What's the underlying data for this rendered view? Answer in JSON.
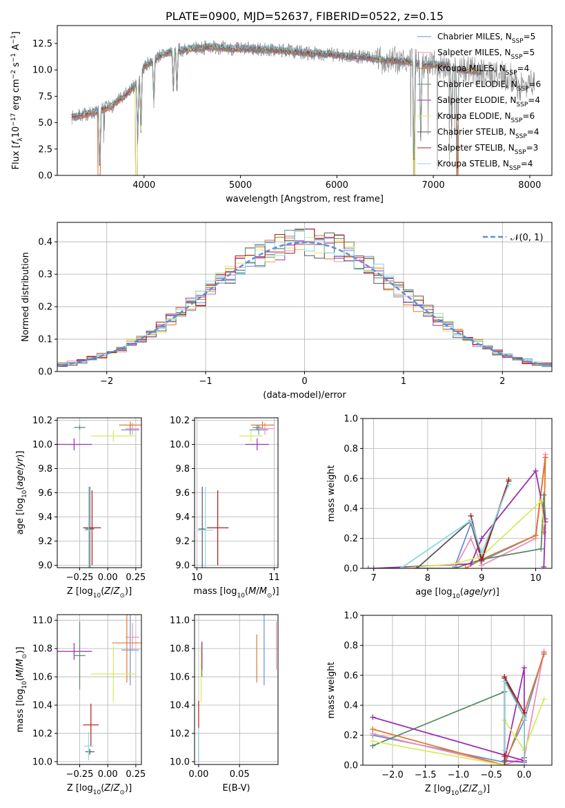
{
  "colors": {
    "chabrier_miles": "#6a8ed0",
    "salpeter_miles": "#f08fb8",
    "kroupa_miles": "#e0772a",
    "chabrier_elodie": "#5a8a66",
    "salpeter_elodie": "#9a2fb0",
    "kroupa_elodie": "#d8ea5e",
    "chabrier_stelib": "#555555",
    "salpeter_stelib": "#b01818",
    "kroupa_stelib": "#8ad8e0",
    "observed": "#808080",
    "normal_curve": "#5b8fd8"
  },
  "chart_data": [
    {
      "id": "spectrum",
      "type": "line",
      "title": "PLATE=0900, MJD=52637, FIBERID=0522, z=0.15",
      "xlabel": "wavelength [Angstrom, rest frame]",
      "ylabel": "Flux [f_λ 10^{-17} erg cm^{-2} s^{-1} A^{-1}]",
      "xlim": [
        3100,
        8230
      ],
      "ylim": [
        0,
        14.2
      ],
      "xticks": [
        4000,
        5000,
        6000,
        7000,
        8000
      ],
      "yticks": [
        0.0,
        2.5,
        5.0,
        7.5,
        10.0,
        12.5
      ],
      "ytick_labels": [
        "0.0",
        "2.5",
        "5.0",
        "7.5",
        "10.0",
        "12.5"
      ],
      "grid": false,
      "legend_placement": "right",
      "legend": [
        {
          "pre": "Chabrier MILES, N",
          "sub": "SSP",
          "post": "=5",
          "color_key": "chabrier_miles"
        },
        {
          "pre": "Salpeter MILES, N",
          "sub": "SSP",
          "post": "=5",
          "color_key": "salpeter_miles"
        },
        {
          "pre": "Kroupa MILES, N",
          "sub": "SSP",
          "post": "=4",
          "color_key": "kroupa_miles"
        },
        {
          "pre": "Chabrier ELODIE, N",
          "sub": "SSP",
          "post": "=6",
          "color_key": "chabrier_elodie"
        },
        {
          "pre": "Salpeter ELODIE, N",
          "sub": "SSP",
          "post": "=4",
          "color_key": "salpeter_elodie"
        },
        {
          "pre": "Kroupa ELODIE, N",
          "sub": "SSP",
          "post": "=6",
          "color_key": "kroupa_elodie"
        },
        {
          "pre": "Chabrier STELIB, N",
          "sub": "SSP",
          "post": "=4",
          "color_key": "chabrier_stelib"
        },
        {
          "pre": "Salpeter STELIB, N",
          "sub": "SSP",
          "post": "=3",
          "color_key": "salpeter_stelib"
        },
        {
          "pre": "Kroupa STELIB, N",
          "sub": "SSP",
          "post": "=4",
          "color_key": "kroupa_stelib"
        }
      ],
      "continuum": {
        "x": [
          3250,
          3400,
          3500,
          3650,
          3800,
          3950,
          4000,
          4150,
          4300,
          4500,
          4700,
          4900,
          5100,
          5300,
          5500,
          5700,
          5900,
          6100,
          6300,
          6500,
          6700,
          6900,
          7100,
          7300,
          7500,
          7700,
          7800,
          7900,
          8000,
          8050
        ],
        "y": [
          5.5,
          5.8,
          6.0,
          6.5,
          7.5,
          9.0,
          10.3,
          11.3,
          11.8,
          12.0,
          12.2,
          12.0,
          12.0,
          11.9,
          11.8,
          11.6,
          11.5,
          11.3,
          11.2,
          10.9,
          10.8,
          10.5,
          10.5,
          10.0,
          9.8,
          9.5,
          9.3,
          8.3,
          9.0,
          8.8
        ]
      },
      "absorption_features": [
        {
          "x": 3540,
          "y": 0.0,
          "models_only": true
        },
        {
          "x": 3934,
          "y": 3.5
        },
        {
          "x": 3968,
          "y": 4.0
        },
        {
          "x": 4102,
          "y": 6.8
        },
        {
          "x": 4304,
          "y": 8.0
        },
        {
          "x": 4341,
          "y": 7.8
        },
        {
          "x": 6800,
          "y": 0.0,
          "models_only": true
        },
        {
          "x": 6870,
          "y": 3.5
        },
        {
          "x": 7190,
          "y": 4.5
        },
        {
          "x": 7250,
          "y": 0.0,
          "models_only": true
        }
      ]
    },
    {
      "id": "residual_histogram",
      "type": "line",
      "xlabel": "(data-model)/error",
      "ylabel": "Normed distribution",
      "xlim": [
        -2.5,
        2.5
      ],
      "ylim": [
        0,
        0.46
      ],
      "xticks": [
        -2,
        -1,
        0,
        1,
        2
      ],
      "xtick_labels": [
        "−2",
        "−1",
        "0",
        "1",
        "2"
      ],
      "yticks": [
        0.0,
        0.1,
        0.2,
        0.3,
        0.4
      ],
      "ytick_labels": [
        "0.0",
        "0.1",
        "0.2",
        "0.3",
        "0.4"
      ],
      "grid": true,
      "legend_placement": "top-right",
      "legend_label": "𝒩(0, 1)",
      "bin_edges_start": -2.5,
      "bin_width": 0.1
    },
    {
      "id": "age_vs_Z",
      "type": "scatter",
      "xlabel": "Z [log10(Z/Z⊙)]",
      "ylabel": "age  [log10(age/yr)]",
      "xlim": [
        -0.45,
        0.3
      ],
      "ylim": [
        8.98,
        10.22
      ],
      "xticks": [
        -0.25,
        0.0,
        0.25
      ],
      "xtick_labels": [
        "−0.25",
        "0.00",
        "0.25"
      ],
      "yticks": [
        9.0,
        9.2,
        9.4,
        9.6,
        9.8,
        10.0,
        10.2
      ],
      "ytick_labels": [
        "9.0",
        "9.2",
        "9.4",
        "9.6",
        "9.8",
        "10.0",
        "10.2"
      ],
      "grid": true,
      "points": [
        {
          "model": "chabrier_miles",
          "x": 0.2,
          "xerr": 0.08,
          "y": 10.12,
          "yerr": 0.04
        },
        {
          "model": "salpeter_miles",
          "x": 0.22,
          "xerr": 0.06,
          "y": 10.13,
          "yerr": 0.05
        },
        {
          "model": "kroupa_miles",
          "x": 0.2,
          "xerr": 0.1,
          "y": 10.16,
          "yerr": 0.03
        },
        {
          "model": "chabrier_elodie",
          "x": -0.25,
          "xerr": 0.05,
          "y": 10.14,
          "yerr": 0.02
        },
        {
          "model": "salpeter_elodie",
          "x": -0.3,
          "xerr": 0.16,
          "y": 10.0,
          "yerr": 0.05
        },
        {
          "model": "kroupa_elodie",
          "x": 0.05,
          "xerr": 0.2,
          "y": 10.07,
          "yerr": 0.05
        },
        {
          "model": "chabrier_stelib",
          "x": -0.16,
          "xerr": 0.04,
          "y": 9.3,
          "yerr": 0.35
        },
        {
          "model": "salpeter_stelib",
          "x": -0.14,
          "xerr": 0.08,
          "y": 9.31,
          "yerr": 0.31
        },
        {
          "model": "kroupa_stelib",
          "x": -0.17,
          "xerr": 0.04,
          "y": 9.29,
          "yerr": 0.36
        }
      ]
    },
    {
      "id": "age_vs_mass",
      "type": "scatter",
      "xlabel": "mass [log10(M/M⊙)]",
      "xlim": [
        9.97,
        11.05
      ],
      "ylim": [
        8.98,
        10.22
      ],
      "xticks": [
        10,
        11
      ],
      "xtick_labels": [
        "10",
        "11"
      ],
      "yticks": [
        9.0,
        9.2,
        9.4,
        9.6,
        9.8,
        10.0,
        10.2
      ],
      "ytick_labels": [
        "9.0",
        "9.2",
        "9.4",
        "9.6",
        "9.8",
        "10.0",
        "10.2"
      ],
      "grid": true,
      "points": [
        {
          "model": "chabrier_miles",
          "x": 10.8,
          "xerr": 0.12,
          "y": 10.12,
          "yerr": 0.04
        },
        {
          "model": "salpeter_miles",
          "x": 10.88,
          "xerr": 0.12,
          "y": 10.13,
          "yerr": 0.05
        },
        {
          "model": "kroupa_miles",
          "x": 10.85,
          "xerr": 0.15,
          "y": 10.16,
          "yerr": 0.03
        },
        {
          "model": "chabrier_elodie",
          "x": 10.78,
          "xerr": 0.06,
          "y": 10.14,
          "yerr": 0.02
        },
        {
          "model": "salpeter_elodie",
          "x": 10.78,
          "xerr": 0.15,
          "y": 10.0,
          "yerr": 0.05
        },
        {
          "model": "kroupa_elodie",
          "x": 10.7,
          "xerr": 0.15,
          "y": 10.07,
          "yerr": 0.05
        },
        {
          "model": "chabrier_stelib",
          "x": 10.07,
          "xerr": 0.05,
          "y": 9.3,
          "yerr": 0.35
        },
        {
          "model": "salpeter_stelib",
          "x": 10.27,
          "xerr": 0.14,
          "y": 9.31,
          "yerr": 0.31
        },
        {
          "model": "kroupa_stelib",
          "x": 10.11,
          "xerr": 0.1,
          "y": 9.29,
          "yerr": 0.36
        }
      ]
    },
    {
      "id": "weight_vs_age",
      "type": "line",
      "xlabel": "age  [log10(age/yr)]",
      "ylabel": "mass weight",
      "xlim": [
        6.8,
        10.3
      ],
      "ylim": [
        0,
        1.0
      ],
      "xticks": [
        7,
        8,
        9,
        10
      ],
      "xtick_labels": [
        "7",
        "8",
        "9",
        "10"
      ],
      "yticks": [
        0.0,
        0.2,
        0.4,
        0.6,
        0.8,
        1.0
      ],
      "ytick_labels": [
        "0.0",
        "0.2",
        "0.4",
        "0.6",
        "0.8",
        "1.0"
      ],
      "grid": true,
      "series": [
        {
          "model": "chabrier_miles",
          "x": [
            8.5,
            8.8,
            9.0,
            10.0,
            10.18
          ],
          "y": [
            0.01,
            0.3,
            0.05,
            0.22,
            0.74
          ]
        },
        {
          "model": "salpeter_miles",
          "x": [
            8.5,
            8.8,
            9.0,
            10.0,
            10.18
          ],
          "y": [
            0.0,
            0.2,
            0.02,
            0.2,
            0.76
          ]
        },
        {
          "model": "kroupa_miles",
          "x": [
            8.7,
            9.0,
            10.0,
            10.18,
            10.15
          ],
          "y": [
            0.0,
            0.06,
            0.22,
            0.74,
            0.24
          ]
        },
        {
          "model": "chabrier_elodie",
          "x": [
            6.9,
            8.5,
            9.0,
            10.1,
            10.15,
            10.18
          ],
          "y": [
            0.0,
            0.0,
            0.06,
            0.13,
            0.49,
            0.33
          ]
        },
        {
          "model": "salpeter_elodie",
          "x": [
            7.0,
            8.8,
            9.0,
            10.0,
            10.18,
            10.15
          ],
          "y": [
            0.0,
            0.03,
            0.2,
            0.65,
            0.31,
            0.01
          ]
        },
        {
          "model": "kroupa_elodie",
          "x": [
            7.5,
            8.5,
            9.0,
            10.1,
            10.15
          ],
          "y": [
            0.0,
            0.03,
            0.08,
            0.45,
            0.3
          ]
        },
        {
          "model": "chabrier_stelib",
          "x": [
            7.8,
            8.8,
            9.0,
            9.5
          ],
          "y": [
            0.0,
            0.32,
            0.05,
            0.58
          ]
        },
        {
          "model": "salpeter_stelib",
          "x": [
            8.8,
            9.0,
            9.5
          ],
          "y": [
            0.35,
            0.06,
            0.59
          ]
        },
        {
          "model": "kroupa_stelib",
          "x": [
            7.5,
            8.8,
            9.0,
            9.5
          ],
          "y": [
            0.0,
            0.32,
            0.1,
            0.56
          ]
        }
      ]
    },
    {
      "id": "mass_vs_Z",
      "type": "scatter",
      "xlabel": "Z [log10(Z/Z⊙)]",
      "ylabel": "mass [log10(M/M⊙)]",
      "xlim": [
        -0.45,
        0.3
      ],
      "ylim": [
        9.98,
        11.04
      ],
      "xticks": [
        -0.25,
        0.0,
        0.25
      ],
      "xtick_labels": [
        "−0.25",
        "0.00",
        "0.25"
      ],
      "yticks": [
        10.0,
        10.2,
        10.4,
        10.6,
        10.8,
        11.0
      ],
      "ytick_labels": [
        "10.0",
        "10.2",
        "10.4",
        "10.6",
        "10.8",
        "11.0"
      ],
      "grid": true,
      "points": [
        {
          "model": "chabrier_miles",
          "x": 0.2,
          "xerr": 0.08,
          "y": 10.79,
          "yerr": 0.25
        },
        {
          "model": "salpeter_miles",
          "x": 0.22,
          "xerr": 0.06,
          "y": 10.88,
          "yerr": 0.1
        },
        {
          "model": "kroupa_miles",
          "x": 0.17,
          "xerr": 0.13,
          "y": 10.84,
          "yerr": 0.28
        },
        {
          "model": "chabrier_elodie",
          "x": -0.25,
          "xerr": 0.05,
          "y": 10.75,
          "yerr": 0.24
        },
        {
          "model": "salpeter_elodie",
          "x": -0.3,
          "xerr": 0.16,
          "y": 10.78,
          "yerr": 0.06
        },
        {
          "model": "kroupa_elodie",
          "x": 0.05,
          "xerr": 0.2,
          "y": 10.62,
          "yerr": 0.2
        },
        {
          "model": "chabrier_stelib",
          "x": -0.16,
          "xerr": 0.04,
          "y": 10.07,
          "yerr": 0.02
        },
        {
          "model": "salpeter_stelib",
          "x": -0.15,
          "xerr": 0.07,
          "y": 10.26,
          "yerr": 0.15
        },
        {
          "model": "kroupa_stelib",
          "x": -0.17,
          "xerr": 0.04,
          "y": 10.11,
          "yerr": 0.1
        }
      ]
    },
    {
      "id": "mass_vs_ebv",
      "type": "scatter",
      "xlabel": "E(B-V)",
      "xlim": [
        -0.005,
        0.097
      ],
      "ylim": [
        9.98,
        11.04
      ],
      "xticks": [
        0.0,
        0.05
      ],
      "xtick_labels": [
        "0.00",
        "0.05"
      ],
      "yticks": [
        10.0,
        10.2,
        10.4,
        10.6,
        10.8,
        11.0
      ],
      "ytick_labels": [
        "10.0",
        "10.2",
        "10.4",
        "10.6",
        "10.8",
        "11.0"
      ],
      "grid": true,
      "points": [
        {
          "model": "chabrier_miles",
          "x": 0.08,
          "y": 10.79,
          "yerr": 0.25
        },
        {
          "model": "salpeter_miles",
          "x": 0.095,
          "y": 10.82,
          "yerr": 0.17
        },
        {
          "model": "kroupa_miles",
          "x": 0.071,
          "y": 10.73,
          "yerr": 0.17
        },
        {
          "model": "chabrier_elodie",
          "x": 0.004,
          "y": 10.72,
          "yerr": 0.12
        },
        {
          "model": "salpeter_elodie",
          "x": 0.004,
          "y": 10.75,
          "yerr": 0.1
        },
        {
          "model": "kroupa_elodie",
          "x": 0.003,
          "y": 10.62,
          "yerr": 0.2
        },
        {
          "model": "chabrier_stelib",
          "x": 0.0,
          "y": 10.1,
          "yerr": 0.1
        },
        {
          "model": "salpeter_stelib",
          "x": 0.0,
          "y": 10.33,
          "yerr": 0.1
        },
        {
          "model": "kroupa_stelib",
          "x": 0.0,
          "y": 10.12,
          "yerr": 0.12
        }
      ]
    },
    {
      "id": "weight_vs_Z",
      "type": "line",
      "xlabel": "Z [log10(Z/Z⊙)]",
      "ylabel": "mass weight",
      "xlim": [
        -2.45,
        0.42
      ],
      "ylim": [
        0,
        1.0
      ],
      "xticks": [
        -2.0,
        -1.5,
        -1.0,
        -0.5,
        0.0
      ],
      "xtick_labels": [
        "−2.0",
        "−1.5",
        "−1.0",
        "−0.5",
        "0.0"
      ],
      "yticks": [
        0.0,
        0.2,
        0.4,
        0.6,
        0.8,
        1.0
      ],
      "ytick_labels": [
        "0.0",
        "0.2",
        "0.4",
        "0.6",
        "0.8",
        "1.0"
      ],
      "grid": true,
      "series": [
        {
          "model": "chabrier_miles",
          "x": [
            -2.3,
            -0.3,
            0.0,
            0.3
          ],
          "y": [
            0.2,
            0.02,
            0.3,
            0.75
          ]
        },
        {
          "model": "salpeter_miles",
          "x": [
            -2.3,
            -0.3,
            0.0,
            0.3
          ],
          "y": [
            0.21,
            0.0,
            0.05,
            0.76
          ]
        },
        {
          "model": "kroupa_miles",
          "x": [
            -2.3,
            -0.3,
            0.0,
            0.3
          ],
          "y": [
            0.24,
            0.0,
            0.35,
            0.74
          ]
        },
        {
          "model": "chabrier_elodie",
          "x": [
            -2.3,
            -0.3,
            -0.3,
            0.0
          ],
          "y": [
            0.13,
            0.49,
            0.0,
            0.0
          ]
        },
        {
          "model": "salpeter_elodie",
          "x": [
            -2.3,
            0.0,
            0.0,
            -0.3,
            0.0
          ],
          "y": [
            0.32,
            0.03,
            0.65,
            0.03,
            0.02
          ]
        },
        {
          "model": "kroupa_elodie",
          "x": [
            -2.3,
            -0.3,
            -0.3,
            0.0,
            0.3
          ],
          "y": [
            0.16,
            0.0,
            0.3,
            0.1,
            0.44
          ]
        },
        {
          "model": "chabrier_stelib",
          "x": [
            -0.3,
            -0.3,
            0.0,
            0.0
          ],
          "y": [
            0.0,
            0.58,
            0.32,
            0.05
          ]
        },
        {
          "model": "salpeter_stelib",
          "x": [
            -0.3,
            -0.3,
            0.0,
            0.0
          ],
          "y": [
            0.06,
            0.59,
            0.35,
            0.0
          ]
        },
        {
          "model": "kroupa_stelib",
          "x": [
            -0.3,
            -0.3,
            0.0,
            0.0
          ],
          "y": [
            0.1,
            0.56,
            0.32,
            0.0
          ]
        }
      ]
    }
  ]
}
